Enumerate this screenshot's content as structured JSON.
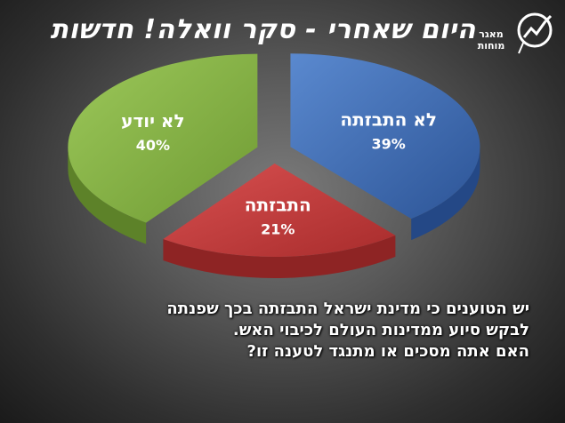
{
  "header": {
    "title": "היום שאחרי - סקר וואלה! חדשות",
    "logo_text": "מאגר מוחות"
  },
  "chart_data": {
    "type": "pie",
    "title": "",
    "slices": [
      {
        "label": "לא התבזתה",
        "value": 39,
        "value_label": "39%",
        "color": "#3d6db3"
      },
      {
        "label": "התבזתה",
        "value": 21,
        "value_label": "21%",
        "color": "#c23b3b"
      },
      {
        "label": "לא יודע",
        "value": 40,
        "value_label": "40%",
        "color": "#86b146"
      }
    ]
  },
  "question": {
    "lines": [
      "יש הטוענים כי מדינת ישראל התבזתה בכך שפנתה",
      "לבקש סיוע ממדינות העולם לכיבוי האש.",
      "האם אתה מסכים או מתנגד לטענה זו?"
    ]
  }
}
